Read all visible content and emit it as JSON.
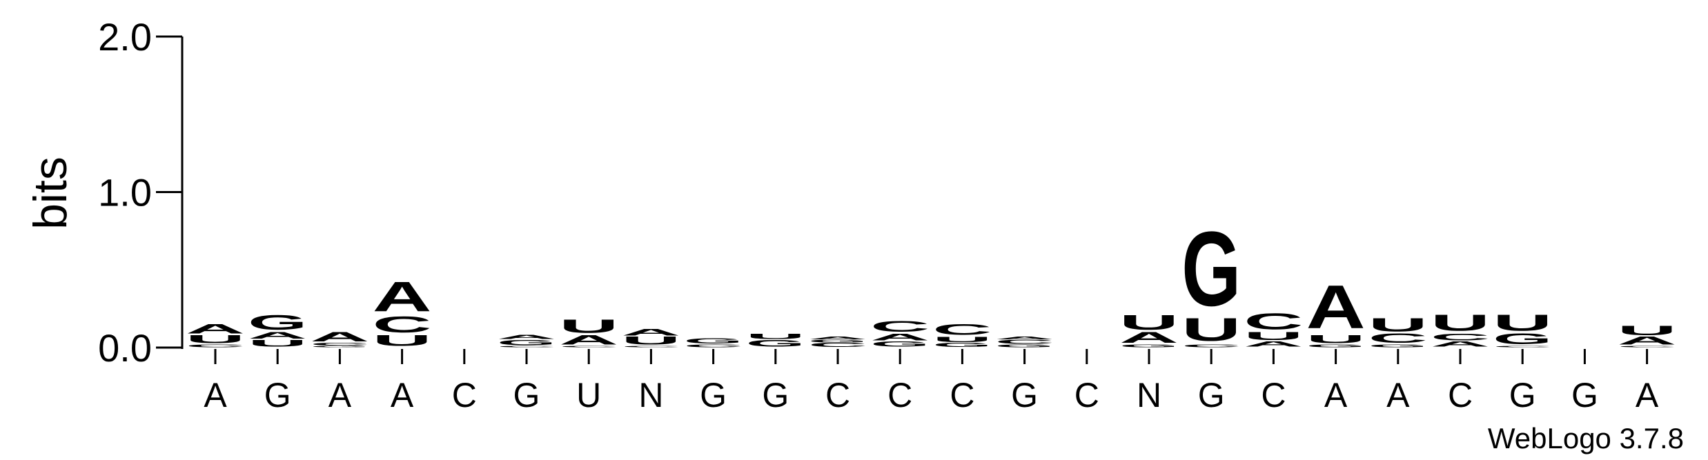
{
  "chart_data": {
    "type": "sequence-logo",
    "ylabel": "bits",
    "ylim": [
      0,
      2
    ],
    "y_ticks": [
      {
        "value": 0,
        "label": "0.0"
      },
      {
        "value": 1,
        "label": "1.0"
      },
      {
        "value": 2,
        "label": "2.0"
      }
    ],
    "x_labels": [
      "A",
      "G",
      "A",
      "A",
      "C",
      "G",
      "U",
      "N",
      "G",
      "G",
      "C",
      "C",
      "C",
      "G",
      "C",
      "N",
      "G",
      "C",
      "A",
      "A",
      "C",
      "G",
      "G",
      "A"
    ],
    "colors": {
      "A": "#FF8C00",
      "U": "#FF8C00",
      "G": "#0000FF",
      "C": "#0000FF"
    },
    "positions": [
      {
        "stack": [
          {
            "base": "C",
            "bits": 0.02
          },
          {
            "base": "U",
            "bits": 0.06
          },
          {
            "base": "A",
            "bits": 0.07
          }
        ]
      },
      {
        "stack": [
          {
            "base": "U",
            "bits": 0.05
          },
          {
            "base": "A",
            "bits": 0.05
          },
          {
            "base": "G",
            "bits": 0.11
          }
        ]
      },
      {
        "stack": [
          {
            "base": "G",
            "bits": 0.01
          },
          {
            "base": "C",
            "bits": 0.02
          },
          {
            "base": "A",
            "bits": 0.07
          }
        ]
      },
      {
        "stack": [
          {
            "base": "U",
            "bits": 0.08
          },
          {
            "base": "C",
            "bits": 0.12
          },
          {
            "base": "A",
            "bits": 0.22
          }
        ]
      },
      {
        "stack": []
      },
      {
        "stack": [
          {
            "base": "C",
            "bits": 0.01
          },
          {
            "base": "G",
            "bits": 0.04
          },
          {
            "base": "A",
            "bits": 0.03
          }
        ]
      },
      {
        "stack": [
          {
            "base": "C",
            "bits": 0.01
          },
          {
            "base": "A",
            "bits": 0.07
          },
          {
            "base": "U",
            "bits": 0.1
          }
        ]
      },
      {
        "stack": [
          {
            "base": "C",
            "bits": 0.01
          },
          {
            "base": "U",
            "bits": 0.06
          },
          {
            "base": "A",
            "bits": 0.05
          }
        ]
      },
      {
        "stack": [
          {
            "base": "C",
            "bits": 0.02
          },
          {
            "base": "G",
            "bits": 0.04
          }
        ]
      },
      {
        "stack": [
          {
            "base": "G",
            "bits": 0.05
          },
          {
            "base": "U",
            "bits": 0.04
          }
        ]
      },
      {
        "stack": [
          {
            "base": "C",
            "bits": 0.03
          },
          {
            "base": "G",
            "bits": 0.02
          },
          {
            "base": "A",
            "bits": 0.02
          }
        ]
      },
      {
        "stack": [
          {
            "base": "G",
            "bits": 0.04
          },
          {
            "base": "A",
            "bits": 0.05
          },
          {
            "base": "C",
            "bits": 0.08
          }
        ]
      },
      {
        "stack": [
          {
            "base": "G",
            "bits": 0.03
          },
          {
            "base": "U",
            "bits": 0.04
          },
          {
            "base": "C",
            "bits": 0.08
          }
        ]
      },
      {
        "stack": [
          {
            "base": "G",
            "bits": 0.02
          },
          {
            "base": "C",
            "bits": 0.03
          },
          {
            "base": "A",
            "bits": 0.02
          }
        ]
      },
      {
        "stack": []
      },
      {
        "stack": [
          {
            "base": "G",
            "bits": 0.02
          },
          {
            "base": "A",
            "bits": 0.08
          },
          {
            "base": "U",
            "bits": 0.11
          }
        ]
      },
      {
        "stack": [
          {
            "base": "C",
            "bits": 0.02
          },
          {
            "base": "U",
            "bits": 0.17
          },
          {
            "base": "G",
            "bits": 0.55
          }
        ]
      },
      {
        "stack": [
          {
            "base": "A",
            "bits": 0.04
          },
          {
            "base": "U",
            "bits": 0.06
          },
          {
            "base": "C",
            "bits": 0.12
          }
        ]
      },
      {
        "stack": [
          {
            "base": "G",
            "bits": 0.02
          },
          {
            "base": "U",
            "bits": 0.06
          },
          {
            "base": "A",
            "bits": 0.32
          }
        ]
      },
      {
        "stack": [
          {
            "base": "G",
            "bits": 0.02
          },
          {
            "base": "C",
            "bits": 0.07
          },
          {
            "base": "U",
            "bits": 0.1
          }
        ]
      },
      {
        "stack": [
          {
            "base": "A",
            "bits": 0.04
          },
          {
            "base": "C",
            "bits": 0.05
          },
          {
            "base": "U",
            "bits": 0.12
          }
        ]
      },
      {
        "stack": [
          {
            "base": "C",
            "bits": 0.01
          },
          {
            "base": "G",
            "bits": 0.08
          },
          {
            "base": "U",
            "bits": 0.12
          }
        ]
      },
      {
        "stack": []
      },
      {
        "stack": [
          {
            "base": "C",
            "bits": 0.01
          },
          {
            "base": "A",
            "bits": 0.06
          },
          {
            "base": "U",
            "bits": 0.07
          }
        ]
      }
    ],
    "footer": "WebLogo 3.7.8"
  }
}
